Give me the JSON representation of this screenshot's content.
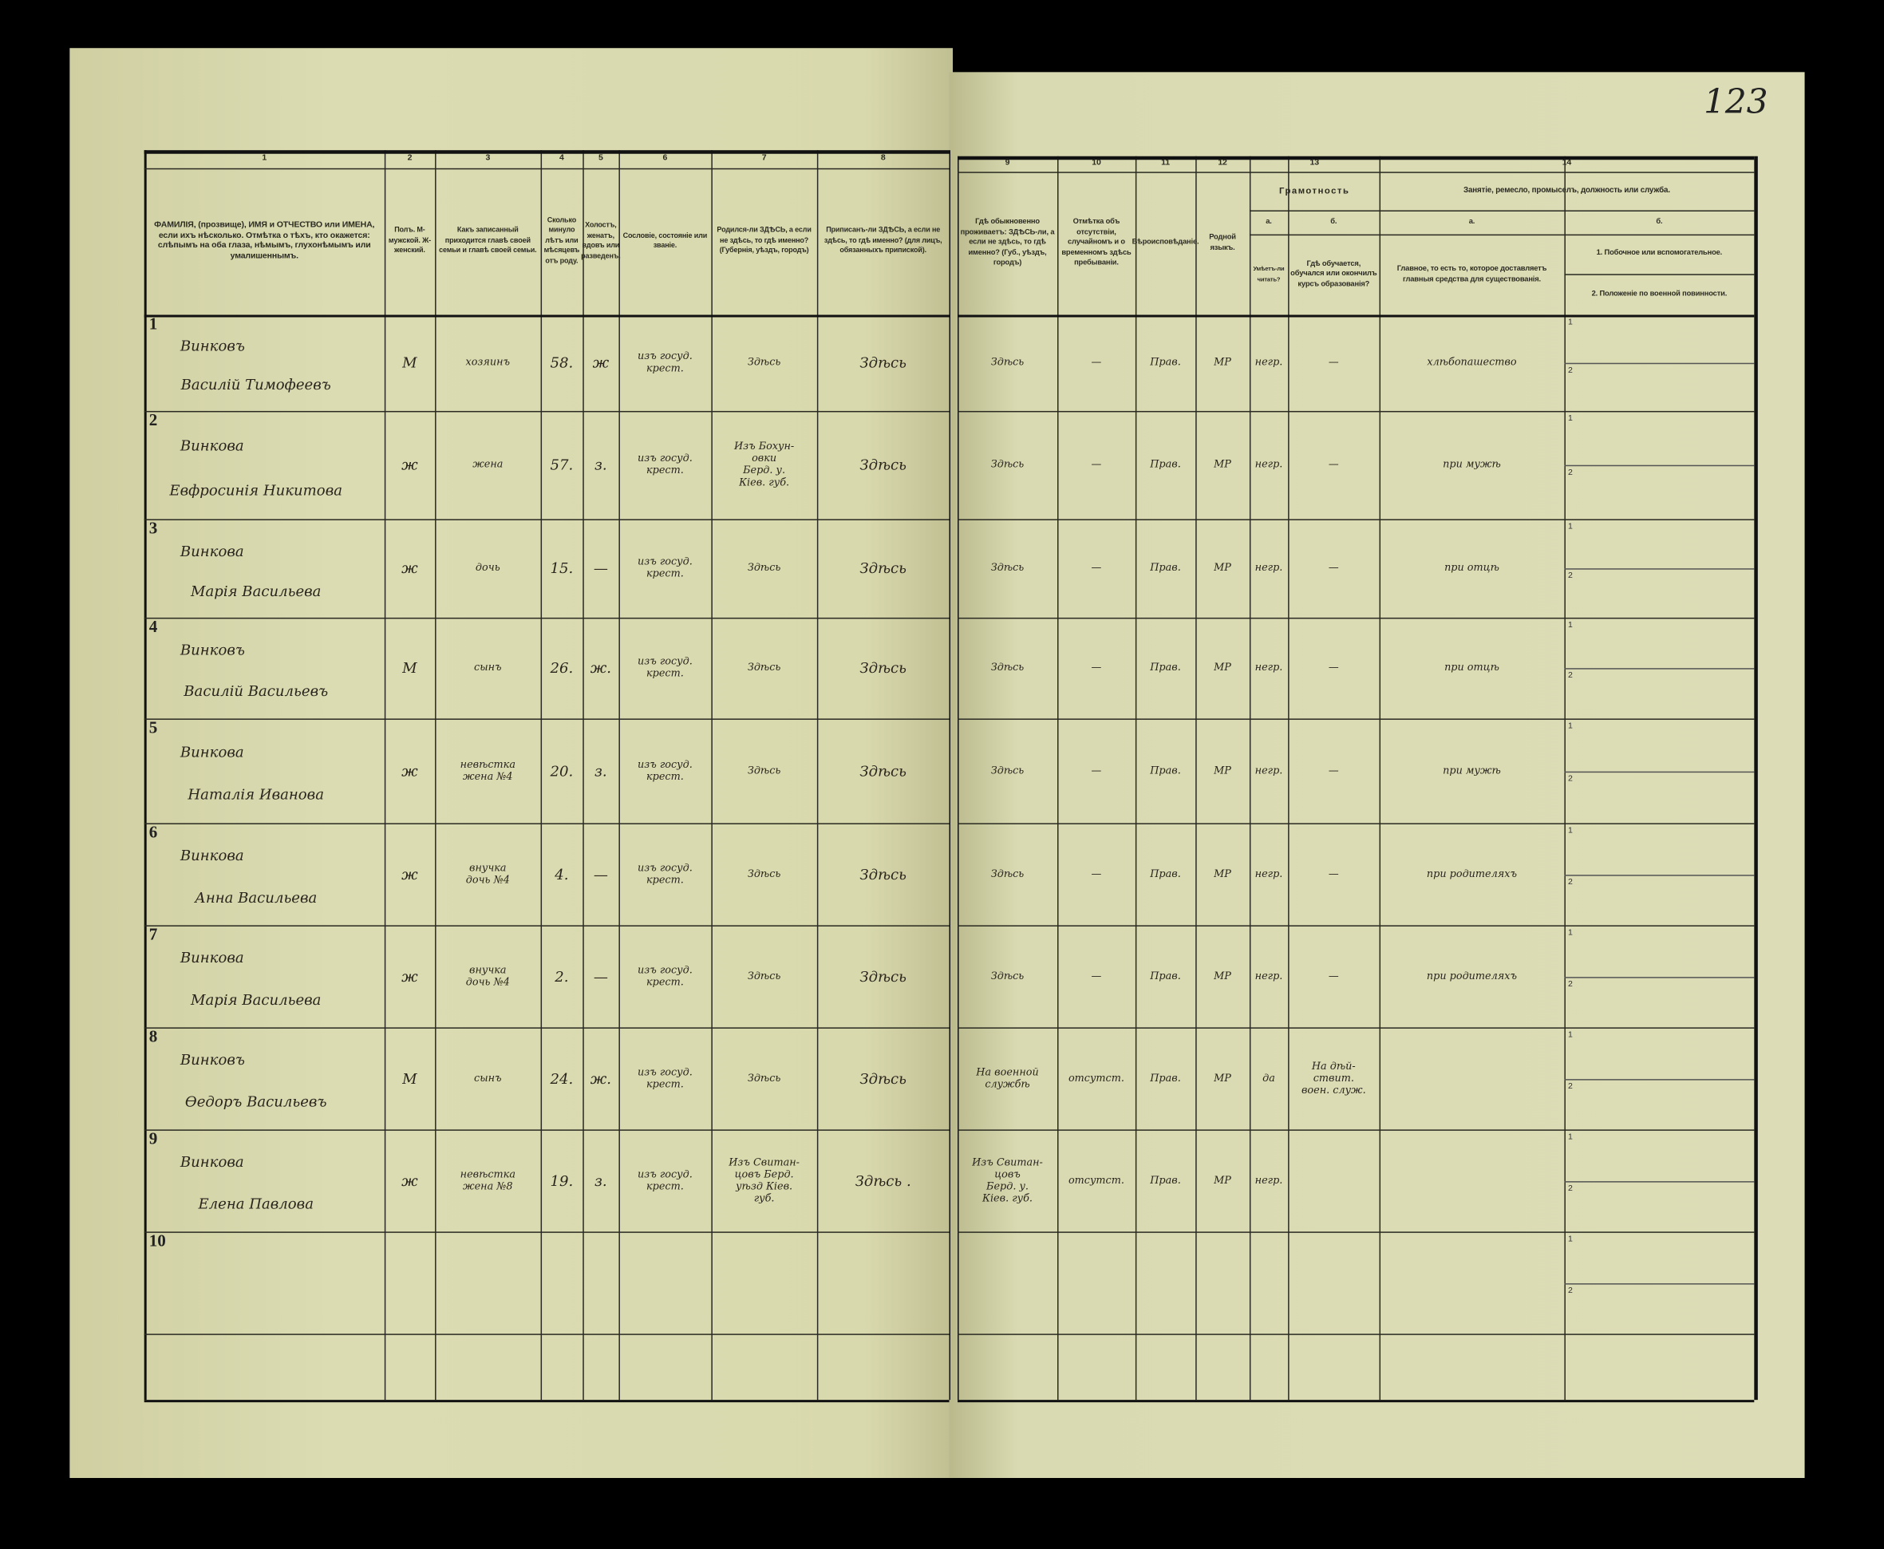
{
  "page_number": "123",
  "colors": {
    "paper": "#d8d8ad",
    "ink": "#2a241d",
    "background": "#000000"
  },
  "left_headers": [
    {
      "num": "1",
      "text": "ФАМИЛІЯ, (прозвище), ИМЯ и ОТЧЕСТВО или ИМЕНА, если ихъ нѣсколько. Отмѣтка о тѣхъ, кто окажется: слѣпымъ на оба глаза, нѣмымъ, глухонѣмымъ или умалишеннымъ."
    },
    {
      "num": "2",
      "text": "Полъ. М-мужской. Ж-женский."
    },
    {
      "num": "3",
      "text": "Какъ записанный приходится главѣ своей семьи и главѣ своей семьи."
    },
    {
      "num": "4",
      "text": "Сколько минуло лѣтъ или мѣсяцевъ отъ роду."
    },
    {
      "num": "5",
      "text": "Холостъ, женатъ, вдовъ или разведенъ."
    },
    {
      "num": "6",
      "text": "Сословіе, состояніе или званіе."
    },
    {
      "num": "7",
      "text": "Родился-ли ЗДѢСЬ, а если не здѣсь, то гдѣ именно? (Губернія, уѣздъ, городъ)"
    },
    {
      "num": "8",
      "text": "Приписанъ-ли ЗДѢСЬ, а если не здѣсь, то гдѣ именно? (для лицъ, обязанныхъ припиской)."
    }
  ],
  "right_headers": {
    "col9": {
      "num": "9",
      "text": "Гдѣ обыкновенно проживаетъ: ЗДѢСЬ-ли, а если не здѣсь, то гдѣ именно? (Губ., уѣздъ, городъ)"
    },
    "col10": {
      "num": "10",
      "text": "Отмѣтка объ отсутствіи, случайномъ и о временномъ здѣсь пребываніи."
    },
    "col11": {
      "num": "11",
      "text": "Вѣроисповѣданіе."
    },
    "col12": {
      "num": "12",
      "text": "Родной языкъ."
    },
    "col13": {
      "num": "13",
      "title": "Грамотность",
      "a": "а.",
      "a_text": "Умѣетъ-ли читать?",
      "b": "б.",
      "b_text": "Гдѣ обучается, обучался или окончилъ курсъ образованія?"
    },
    "col14": {
      "num": "14",
      "title": "Занятіе, ремесло, промыселъ, должность или служба.",
      "a": "а.",
      "a_text": "Главное, то есть то, которое доставляетъ главныя средства для существованія.",
      "b": "б.",
      "b1": "1. Побочное или вспомогательное.",
      "b2": "2. Положеніе по военной повинности."
    }
  },
  "sub_labels": {
    "one": "1",
    "two": "2"
  },
  "rows": [
    {
      "n": "1",
      "surname": "Винковъ",
      "name": "Василій Тимофеевъ",
      "sex": "М",
      "relation": "хозяинъ",
      "age": "58.",
      "marital": "ж",
      "estate": "изъ госуд.\nкрест.",
      "born": "Здѣсь",
      "registered": "Здѣсь",
      "residence": "Здѣсь",
      "absence": "—",
      "religion": "Прав.",
      "language": "МР",
      "literate": "негр.",
      "education": "—",
      "occupation": "хлѣбопашество"
    },
    {
      "n": "2",
      "surname": "Винкова",
      "name": "Евфросинія Никитова",
      "sex": "ж",
      "relation": "жена",
      "age": "57.",
      "marital": "з.",
      "estate": "изъ госуд.\nкрест.",
      "born": "Изъ Бохун-\nовки\nБерд. у.\nКіев. губ.",
      "registered": "Здѣсь",
      "residence": "Здѣсь",
      "absence": "—",
      "religion": "Прав.",
      "language": "МР",
      "literate": "негр.",
      "education": "—",
      "occupation": "при мужѣ"
    },
    {
      "n": "3",
      "surname": "Винкова",
      "name": "Марія Васильева",
      "sex": "ж",
      "relation": "дочь",
      "age": "15.",
      "marital": "—",
      "estate": "изъ госуд.\nкрест.",
      "born": "Здѣсь",
      "registered": "Здѣсь",
      "residence": "Здѣсь",
      "absence": "—",
      "religion": "Прав.",
      "language": "МР",
      "literate": "негр.",
      "education": "—",
      "occupation": "при отцѣ"
    },
    {
      "n": "4",
      "surname": "Винковъ",
      "name": "Василій Васильевъ",
      "sex": "М",
      "relation": "сынъ",
      "age": "26.",
      "marital": "ж.",
      "estate": "изъ госуд.\nкрест.",
      "born": "Здѣсь",
      "registered": "Здѣсь",
      "residence": "Здѣсь",
      "absence": "—",
      "religion": "Прав.",
      "language": "МР",
      "literate": "негр.",
      "education": "—",
      "occupation": "при отцѣ"
    },
    {
      "n": "5",
      "surname": "Винкова",
      "name": "Наталія Иванова",
      "sex": "ж",
      "relation": "невѣстка\nжена №4",
      "age": "20.",
      "marital": "з.",
      "estate": "изъ госуд.\nкрест.",
      "born": "Здѣсь",
      "registered": "Здѣсь",
      "residence": "Здѣсь",
      "absence": "—",
      "religion": "Прав.",
      "language": "МР",
      "literate": "негр.",
      "education": "—",
      "occupation": "при мужѣ"
    },
    {
      "n": "6",
      "surname": "Винкова",
      "name": "Анна Васильева",
      "sex": "ж",
      "relation": "внучка\nдочь №4",
      "age": "4.",
      "marital": "—",
      "estate": "изъ госуд.\nкрест.",
      "born": "Здѣсь",
      "registered": "Здѣсь",
      "residence": "Здѣсь",
      "absence": "—",
      "religion": "Прав.",
      "language": "МР",
      "literate": "негр.",
      "education": "—",
      "occupation": "при родителяхъ"
    },
    {
      "n": "7",
      "surname": "Винкова",
      "name": "Марія Васильева",
      "sex": "ж",
      "relation": "внучка\nдочь №4",
      "age": "2.",
      "marital": "—",
      "estate": "изъ госуд.\nкрест.",
      "born": "Здѣсь",
      "registered": "Здѣсь",
      "residence": "Здѣсь",
      "absence": "—",
      "religion": "Прав.",
      "language": "МР",
      "literate": "негр.",
      "education": "—",
      "occupation": "при родителяхъ"
    },
    {
      "n": "8",
      "surname": "Винковъ",
      "name": "Өедоръ Васильевъ",
      "sex": "М",
      "relation": "сынъ",
      "age": "24.",
      "marital": "ж.",
      "estate": "изъ госуд.\nкрест.",
      "born": "Здѣсь",
      "registered": "Здѣсь",
      "residence": "На военной\nслужбѣ",
      "absence": "отсутст.",
      "religion": "Прав.",
      "language": "МР",
      "literate": "да",
      "education": "На дѣй-\nствит.\nвоен. служ.",
      "occupation": ""
    },
    {
      "n": "9",
      "surname": "Винкова",
      "name": "Елена Павлова",
      "sex": "ж",
      "relation": "невѣстка\nжена №8",
      "age": "19.",
      "marital": "з.",
      "estate": "изъ госуд.\nкрест.",
      "born": "Изъ Свитан-\nцовъ Берд.\nуѣзд Кіев.\nгуб.",
      "registered": "Здѣсь .",
      "residence": "Изъ Свитан-\nцовъ\nБерд. у.\nКіев. губ.",
      "absence": "отсутст.",
      "religion": "Прав.",
      "language": "МР",
      "literate": "негр.",
      "education": "",
      "occupation": ""
    },
    {
      "n": "10",
      "surname": "",
      "name": "",
      "sex": "",
      "relation": "",
      "age": "",
      "marital": "",
      "estate": "",
      "born": "",
      "registered": "",
      "residence": "",
      "absence": "",
      "religion": "",
      "language": "",
      "literate": "",
      "education": "",
      "occupation": ""
    }
  ]
}
